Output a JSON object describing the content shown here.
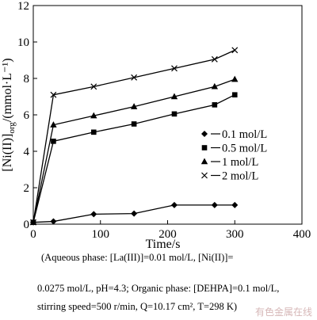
{
  "chart_data": {
    "type": "line",
    "xlabel": "Time/s",
    "ylabel": "[Ni(II)]org/(mmol·L⁻¹)",
    "xlim": [
      0,
      400
    ],
    "ylim": [
      0,
      12
    ],
    "x_ticks": [
      "0",
      "100",
      "200",
      "300",
      "400"
    ],
    "y_ticks": [
      "0",
      "2",
      "4",
      "6",
      "8",
      "10",
      "12"
    ],
    "grid": false,
    "legend_position": "right-middle",
    "series": [
      {
        "name": "0.1 mol/L",
        "marker": "diamond",
        "x": [
          0,
          30,
          90,
          150,
          210,
          270,
          300
        ],
        "y": [
          0.1,
          0.15,
          0.55,
          0.58,
          1.05,
          1.05,
          1.05
        ]
      },
      {
        "name": "0.5 mol/L",
        "marker": "square",
        "x": [
          0,
          30,
          90,
          150,
          210,
          270,
          300
        ],
        "y": [
          0.1,
          4.55,
          5.05,
          5.5,
          6.05,
          6.55,
          7.1
        ]
      },
      {
        "name": "1 mol/L",
        "marker": "triangle",
        "x": [
          0,
          30,
          90,
          150,
          210,
          270,
          300
        ],
        "y": [
          0.1,
          5.45,
          5.95,
          6.45,
          7.0,
          7.55,
          7.95
        ]
      },
      {
        "name": "2 mol/L",
        "marker": "cross",
        "x": [
          0,
          30,
          90,
          150,
          210,
          270,
          300
        ],
        "y": [
          0.1,
          7.1,
          7.55,
          8.05,
          8.55,
          9.05,
          9.55
        ]
      }
    ]
  },
  "caption": {
    "line1": "(Aqueous phase: [La(III)]=0.01 mol/L, [Ni(II)]=",
    "line2": "0.0275 mol/L, pH=4.3; Organic phase: [DEHPA]=0.1 mol/L,",
    "line3": "stirring speed=500 r/min, Q=10.17 cm², T=298 K)"
  },
  "watermark": "有色金属在线"
}
